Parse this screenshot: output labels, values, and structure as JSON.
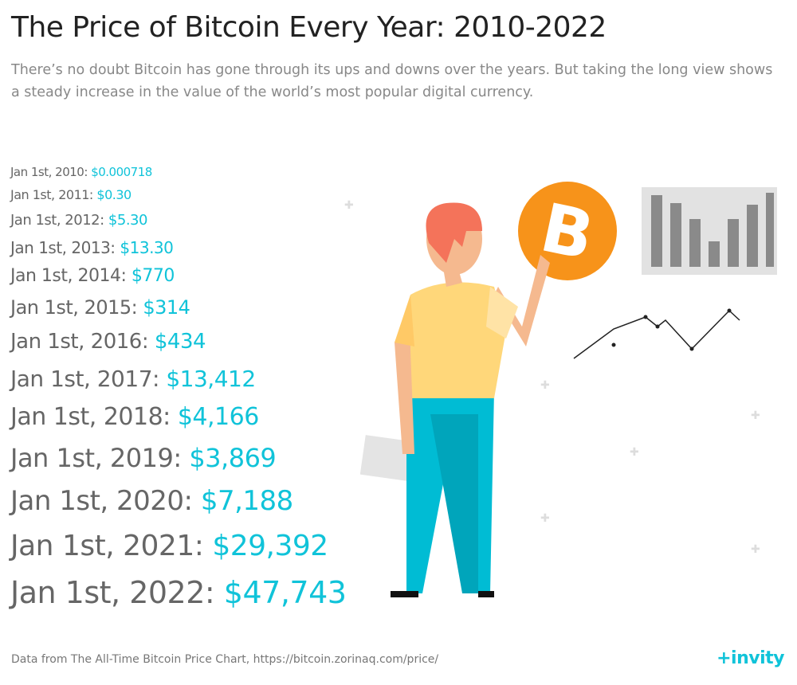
{
  "title": "The Price of Bitcoin Every Year: 2010-2022",
  "subtitle": "There’s no doubt Bitcoin has gone through its ups and downs over the years. But taking the long view shows a steady increase in the value of the world’s most popular digital currency.",
  "entries": [
    {
      "date": "Jan 1st, 2010:",
      "price": "$0.000718"
    },
    {
      "date": "Jan 1st, 2011:",
      "price": "$0.30"
    },
    {
      "date": "Jan 1st, 2012:",
      "price": "$5.30"
    },
    {
      "date": "Jan 1st, 2013:",
      "price": "$13.30"
    },
    {
      "date": "Jan 1st, 2014:",
      "price": "$770"
    },
    {
      "date": "Jan 1st, 2015:",
      "price": "$314"
    },
    {
      "date": "Jan 1st, 2016:",
      "price": "$434"
    },
    {
      "date": "Jan 1st, 2017:",
      "price": "$13,412"
    },
    {
      "date": "Jan 1st, 2018:",
      "price": "$4,166"
    },
    {
      "date": "Jan 1st, 2019:",
      "price": "$3,869"
    },
    {
      "date": "Jan 1st, 2020:",
      "price": "$7,188"
    },
    {
      "date": "Jan 1st, 2021:",
      "price": "$29,392"
    },
    {
      "date": "Jan 1st, 2022:",
      "price": "$47,743"
    }
  ],
  "footer": "Data from The All-Time Bitcoin Price Chart, https://bitcoin.zorinaq.com/price/",
  "logo": "+invity",
  "colors": {
    "accent": "#10c3d9",
    "bitcoin": "#f7931a"
  }
}
